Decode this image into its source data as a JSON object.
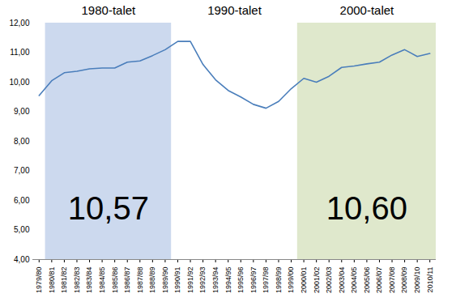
{
  "chart_data": {
    "type": "line",
    "categories": [
      "1979/80",
      "1980/81",
      "1981/82",
      "1982/83",
      "1983/84",
      "1984/85",
      "1985/86",
      "1986/87",
      "1987/88",
      "1988/89",
      "1989/90",
      "1990/91",
      "1991/92",
      "1992/93",
      "1993/94",
      "1994/95",
      "1995/96",
      "1996/97",
      "1997/98",
      "1998/99",
      "1999/00",
      "2000/01",
      "2001/02",
      "2002/03",
      "2003/04",
      "2004/05",
      "2005/06",
      "2006/07",
      "2007/08",
      "2008/09",
      "2009/10",
      "2010/11"
    ],
    "values": [
      9.55,
      10.05,
      10.32,
      10.37,
      10.45,
      10.48,
      10.48,
      10.68,
      10.72,
      10.9,
      11.1,
      11.38,
      11.38,
      10.6,
      10.08,
      9.72,
      9.5,
      9.25,
      9.12,
      9.35,
      9.78,
      10.13,
      10.0,
      10.2,
      10.5,
      10.55,
      10.62,
      10.68,
      10.92,
      11.1,
      10.87,
      10.97
    ],
    "color": "#4a7ebb",
    "ylim": [
      4,
      12
    ],
    "yticks": [
      {
        "value": 4,
        "label": "4,00"
      },
      {
        "value": 5,
        "label": "5,00"
      },
      {
        "value": 6,
        "label": "6,00"
      },
      {
        "value": 7,
        "label": "7,00"
      },
      {
        "value": 8,
        "label": "8,00"
      },
      {
        "value": 9,
        "label": "9,00"
      },
      {
        "value": 10,
        "label": "10,00"
      },
      {
        "value": 11,
        "label": "11,00"
      },
      {
        "value": 12,
        "label": "12,00"
      }
    ],
    "grid": false,
    "periods": [
      {
        "name": "1980-talet",
        "from": "1980/81",
        "to": "1989/90",
        "color": "#ccd9ee",
        "average": 10.57,
        "average_label": "10,57"
      },
      {
        "name": "1990-talet",
        "from": "1990/91",
        "to": "1999/00"
      },
      {
        "name": "2000-talet",
        "from": "2000/01",
        "to": "2010/11",
        "color": "#dfe8cc",
        "average": 10.6,
        "average_label": "10,60"
      }
    ]
  }
}
